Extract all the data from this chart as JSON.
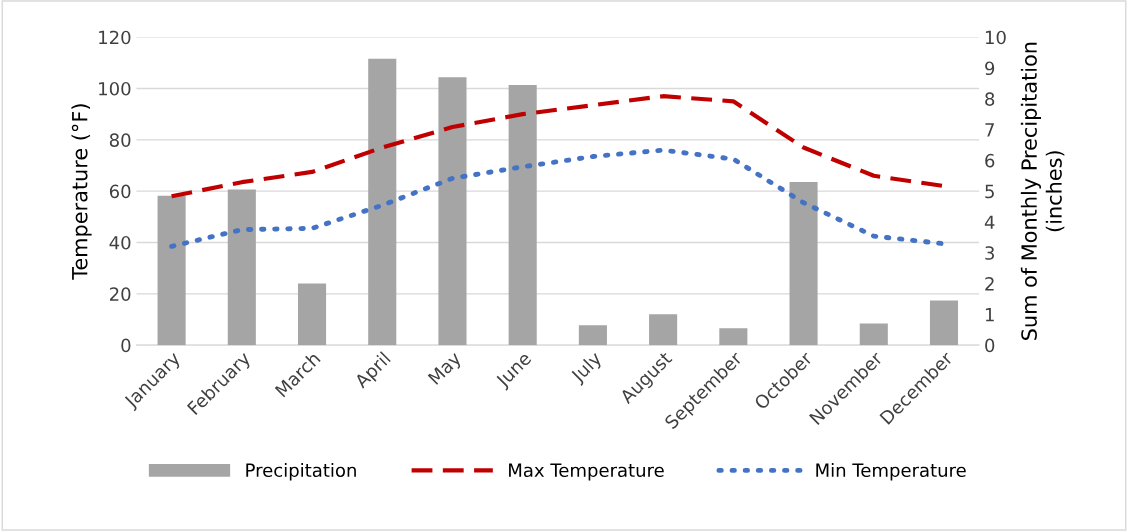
{
  "chart_data": {
    "type": "bar",
    "categories": [
      "January",
      "February",
      "March",
      "April",
      "May",
      "June",
      "July",
      "August",
      "September",
      "October",
      "November",
      "December"
    ],
    "series": [
      {
        "name": "Precipitation",
        "axis": "y2",
        "color": "#a5a5a5",
        "values": [
          4.85,
          5.05,
          2.0,
          9.3,
          8.7,
          8.45,
          0.65,
          1.0,
          0.55,
          5.3,
          0.7,
          1.45
        ]
      },
      {
        "name": "Max Temperature",
        "type": "line",
        "line_style": "dashed",
        "color": "#c00000",
        "values": [
          58,
          63.5,
          67.5,
          77,
          85,
          90,
          93.5,
          97,
          95,
          77,
          66,
          62
        ]
      },
      {
        "name": "Min Temperature",
        "type": "line",
        "line_style": "dotted",
        "color": "#4472c4",
        "values": [
          38.5,
          45,
          45.5,
          54.5,
          65,
          69.5,
          73.5,
          76,
          72.5,
          55.5,
          42.5,
          39.5
        ]
      }
    ],
    "ylabel": "Temperature (°F)",
    "y2label": "Sum of Monthly Precipitation\n(inches)",
    "ylim": [
      0,
      120
    ],
    "yticks": [
      0,
      20,
      40,
      60,
      80,
      100,
      120
    ],
    "y2lim": [
      0,
      10
    ],
    "y2ticks": [
      0,
      1,
      2,
      3,
      4,
      5,
      6,
      7,
      8,
      9,
      10
    ],
    "grid": "y",
    "legend": "bottom",
    "marker": "none"
  }
}
